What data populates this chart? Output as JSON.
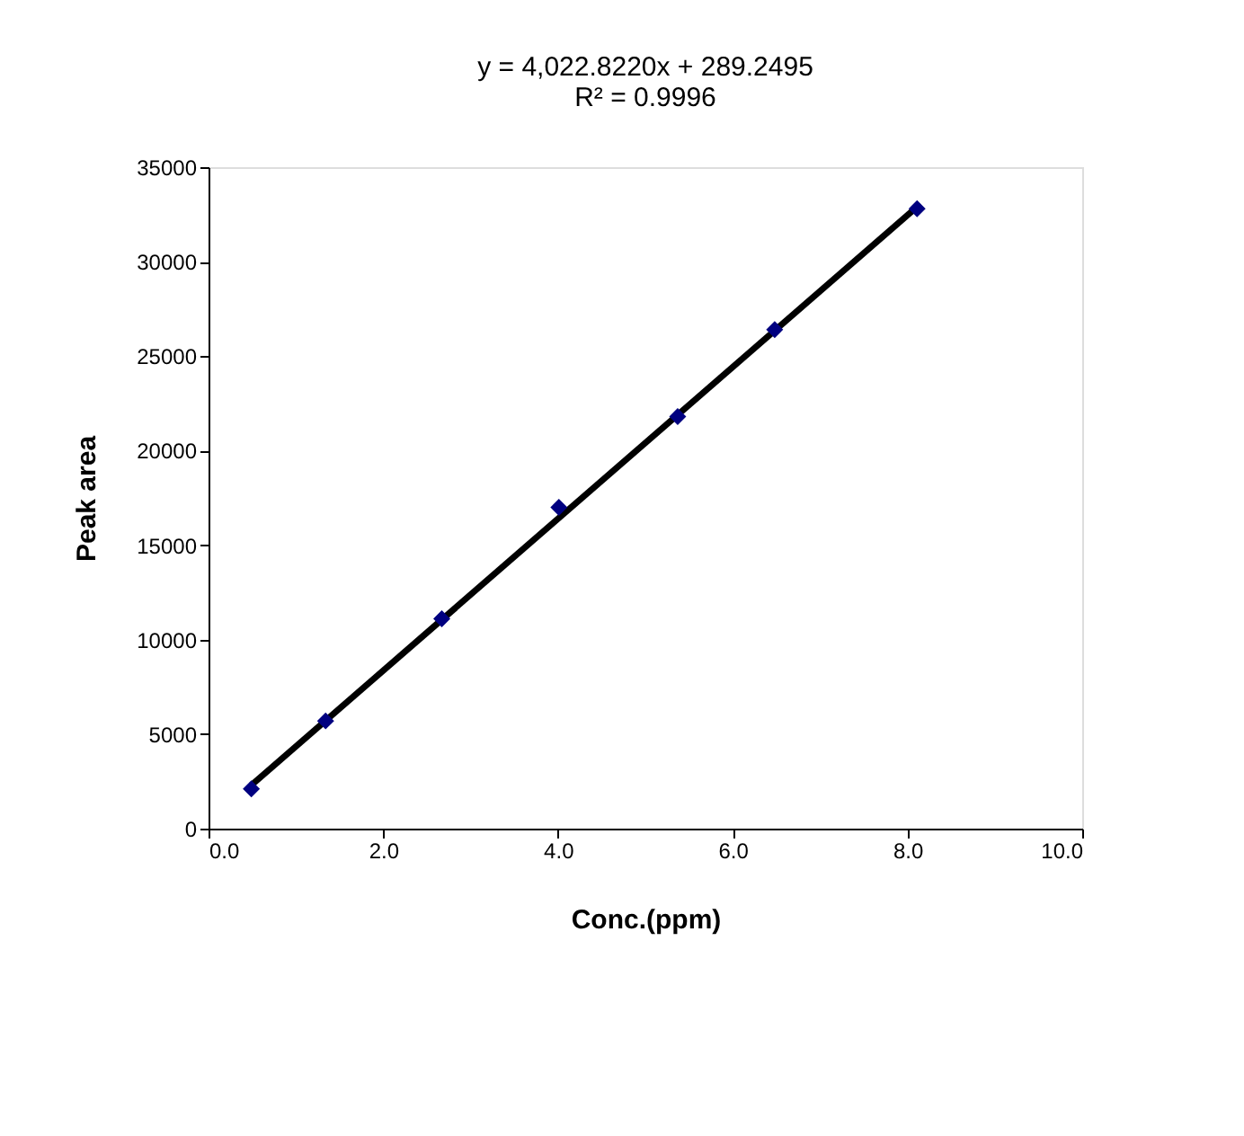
{
  "chart_data": {
    "type": "scatter",
    "xlabel": "Conc.(ppm)",
    "ylabel": "Peak area",
    "annotations": [
      "y = 4,022.8220x  + 289.2495",
      "R² = 0.9996"
    ],
    "series": [
      {
        "color": "#000080",
        "marker": "diamond",
        "x": [
          0.49,
          1.34,
          2.67,
          4.01,
          5.37,
          6.48,
          8.11
        ],
        "values": [
          2100,
          5700,
          11100,
          17000,
          21800,
          26400,
          32800
        ]
      },
      {
        "type": "line",
        "color": "#000000",
        "x": [
          0.49,
          8.11
        ],
        "values": [
          2300,
          32900
        ],
        "marker": "none"
      }
    ],
    "xlim": [
      0,
      10
    ],
    "xticks": [
      {
        "value": 0,
        "label": "0.0"
      },
      {
        "value": 2,
        "label": "2.0"
      },
      {
        "value": 4,
        "label": "4.0"
      },
      {
        "value": 6,
        "label": "6.0"
      },
      {
        "value": 8,
        "label": "8.0"
      },
      {
        "value": 10,
        "label": "10.0"
      }
    ],
    "ylim": [
      0,
      35000
    ],
    "yticks": [
      0,
      5000,
      10000,
      15000,
      20000,
      25000,
      30000,
      35000
    ],
    "grid": false,
    "line_style": "solid"
  }
}
